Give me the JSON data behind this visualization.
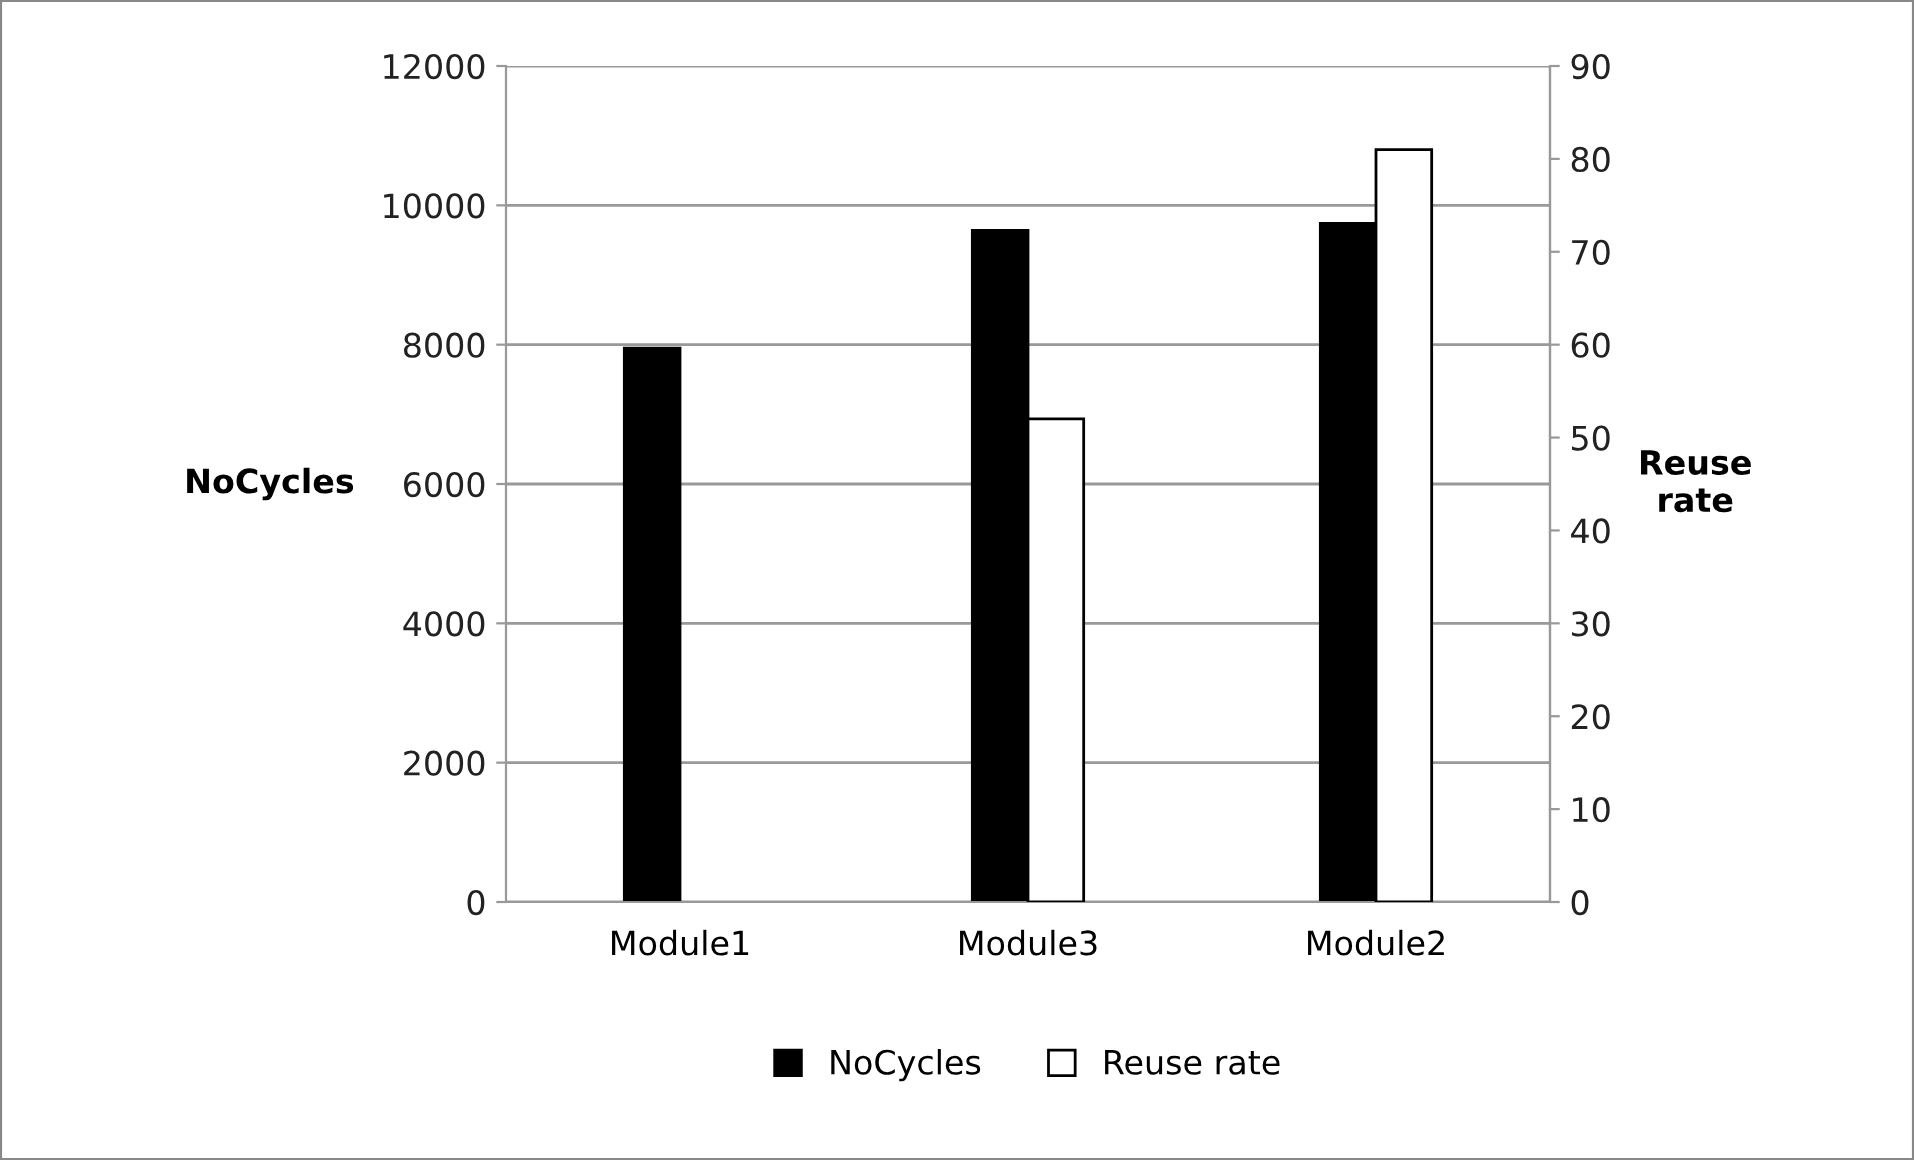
{
  "chart_data": {
    "type": "bar",
    "categories": [
      "Module1",
      "Module3",
      "Module2"
    ],
    "series": [
      {
        "name": "NoCycles",
        "color": "#000000",
        "values": [
          7950,
          9640,
          9740
        ]
      },
      {
        "name": "Reuse rate",
        "color": "#ffffff",
        "axis": "y2",
        "values": [
          null,
          52,
          81
        ]
      }
    ],
    "ylabel": "NoCycles",
    "y2label": "Reuse rate",
    "ylim": [
      0,
      12000
    ],
    "yticks": [
      0,
      2000,
      4000,
      6000,
      8000,
      10000,
      12000
    ],
    "y2lim": [
      0,
      90
    ],
    "y2ticks": [
      0,
      10,
      20,
      30,
      40,
      50,
      60,
      70,
      80,
      90
    ],
    "grid": "y",
    "legend": "bottom"
  }
}
